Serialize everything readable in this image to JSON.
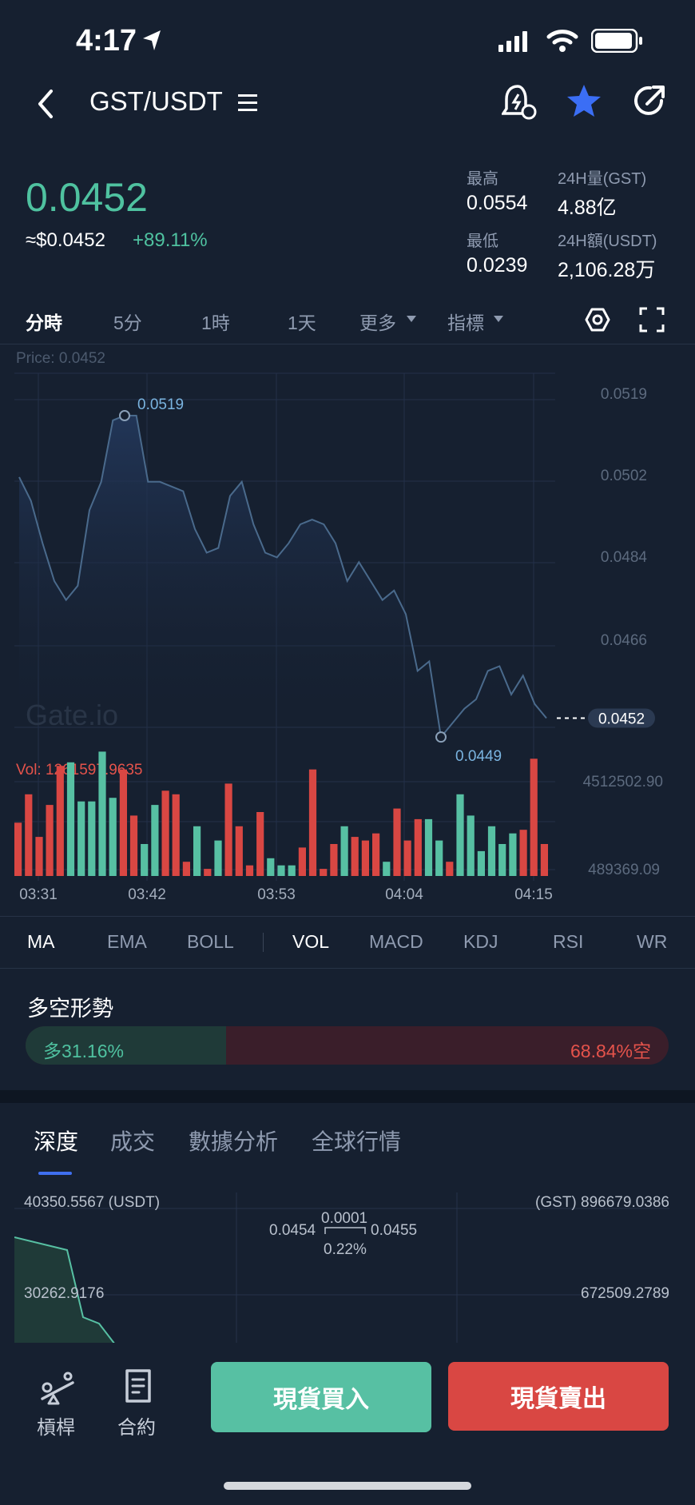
{
  "status_bar": {
    "time": "4:17"
  },
  "header": {
    "pair": "GST/USDT",
    "title_icon": "list-icon"
  },
  "ticker": {
    "price": "0.0452",
    "usd_price": "≈$0.0452",
    "change": "+89.11%",
    "high_label": "最高",
    "high": "0.0554",
    "low_label": "最低",
    "low": "0.0239",
    "vol_label": "24H量(GST)",
    "vol": "4.88亿",
    "amt_label": "24H額(USDT)",
    "amt": "2,106.28万"
  },
  "interval_tabs": [
    "分時",
    "5分",
    "1時",
    "1天",
    "更多",
    "指標"
  ],
  "active_interval": 0,
  "chart_data": {
    "type": "line",
    "price_label": "Price: 0.0452",
    "x_ticks": [
      "03:31",
      "03:42",
      "03:53",
      "04:04",
      "04:15"
    ],
    "y_ticks": [
      "0.0519",
      "0.0502",
      "0.0484",
      "0.0466",
      "0.0449"
    ],
    "ylim": [
      0.0449,
      0.0519
    ],
    "max_label": "0.0519",
    "min_label": "0.0449",
    "current_price_label": "0.0452",
    "watermark": "Gate.io",
    "series": [
      {
        "values": [
          0.0506,
          0.0501,
          0.0492,
          0.0484,
          0.048,
          0.0483,
          0.0499,
          0.0505,
          0.0518,
          0.0519,
          0.0519,
          0.0505,
          0.0505,
          0.0504,
          0.0503,
          0.0495,
          0.049,
          0.0491,
          0.0502,
          0.0505,
          0.0496,
          0.049,
          0.0489,
          0.0492,
          0.0496,
          0.0497,
          0.0496,
          0.0492,
          0.0484,
          0.0488,
          0.0484,
          0.048,
          0.0482,
          0.0477,
          0.0465,
          0.0467,
          0.0451,
          0.0454,
          0.0457,
          0.0459,
          0.0465,
          0.0466,
          0.046,
          0.0464,
          0.0458,
          0.0455
        ]
      }
    ],
    "volume": {
      "label": "Vol: 1261597.9635",
      "ylim": [
        489369.09,
        4512502.9
      ],
      "max_label": "4512502.90",
      "min_label": "489369.09",
      "values": [
        1500000,
        2300000,
        1100000,
        2000000,
        3100000,
        3200000,
        2100000,
        2100000,
        3500000,
        2200000,
        3000000,
        1700000,
        900000,
        2000000,
        2400000,
        2300000,
        400000,
        1400000,
        200000,
        1000000,
        2600000,
        1400000,
        300000,
        1800000,
        500000,
        300000,
        300000,
        800000,
        3000000,
        200000,
        900000,
        1400000,
        1100000,
        1000000,
        1200000,
        400000,
        1900000,
        1000000,
        1600000,
        1600000,
        1000000,
        400000,
        2300000,
        1700000,
        700000,
        1400000,
        900000,
        1200000,
        1300000,
        3300000,
        900000
      ],
      "up": [
        false,
        false,
        false,
        false,
        false,
        true,
        true,
        true,
        true,
        true,
        false,
        false,
        true,
        true,
        false,
        false,
        false,
        true,
        false,
        true,
        false,
        false,
        false,
        false,
        true,
        true,
        true,
        false,
        false,
        false,
        false,
        true,
        false,
        false,
        false,
        true,
        false,
        false,
        false,
        true,
        true,
        false,
        true,
        true,
        true,
        true,
        true,
        true,
        false,
        false,
        false
      ]
    },
    "colors": {
      "line": "#4a6a8c",
      "up": "#57c0a3",
      "down": "#d94743"
    }
  },
  "indicator_tabs": [
    "MA",
    "EMA",
    "BOLL",
    "VOL",
    "MACD",
    "KDJ",
    "RSI",
    "WR"
  ],
  "long_short": {
    "title": "多空形勢",
    "long_label": "多31.16%",
    "short_label": "68.84%空",
    "long_pct": 31.16
  },
  "depth_tabs": [
    "深度",
    "成交",
    "數據分析",
    "全球行情"
  ],
  "depth": {
    "left_top": "40350.5567 (USDT)",
    "right_top": "(GST) 896679.0386",
    "left_mid": "30262.9176",
    "right_mid": "672509.2789",
    "bid": "0.0454",
    "ask": "0.0455",
    "spread": "0.0001",
    "spread_pct": "0.22%"
  },
  "bottom_nav": {
    "leverage": "槓桿",
    "contract": "合約",
    "buy": "現貨買入",
    "sell": "現貨賣出"
  }
}
